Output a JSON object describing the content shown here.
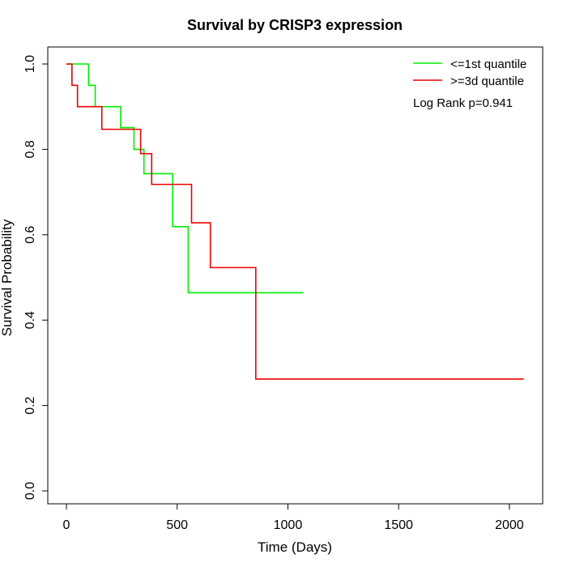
{
  "chart_data": {
    "type": "line",
    "step": true,
    "title": "Survival by CRISP3 expression",
    "xlabel": "Time (Days)",
    "ylabel": "Survival Probability",
    "xlim": [
      0,
      2070
    ],
    "ylim": [
      0,
      1.0
    ],
    "xticks": [
      0,
      500,
      1000,
      1500,
      2000
    ],
    "xtick_labels": [
      "0",
      "500",
      "1000",
      "1500",
      "2000"
    ],
    "yticks": [
      0.0,
      0.2,
      0.4,
      0.6,
      0.8,
      1.0
    ],
    "ytick_labels": [
      "0.0",
      "0.2",
      "0.4",
      "0.6",
      "0.8",
      "1.0"
    ],
    "grid": false,
    "legend_position": "top-right",
    "annotation": "Log Rank p=0.941",
    "series": [
      {
        "name": "<=1st quantile",
        "color": "#00ee00",
        "x": [
          0,
          100,
          130,
          245,
          305,
          350,
          480,
          550,
          1070
        ],
        "y": [
          1.0,
          0.95,
          0.9,
          0.851,
          0.8,
          0.743,
          0.619,
          0.464,
          0.464
        ]
      },
      {
        "name": ">=3d quantile",
        "color": "#ee0000",
        "x": [
          0,
          25,
          50,
          160,
          335,
          385,
          565,
          650,
          855,
          2065
        ],
        "y": [
          1.0,
          0.95,
          0.9,
          0.847,
          0.79,
          0.718,
          0.628,
          0.523,
          0.262,
          0.262
        ]
      }
    ]
  }
}
